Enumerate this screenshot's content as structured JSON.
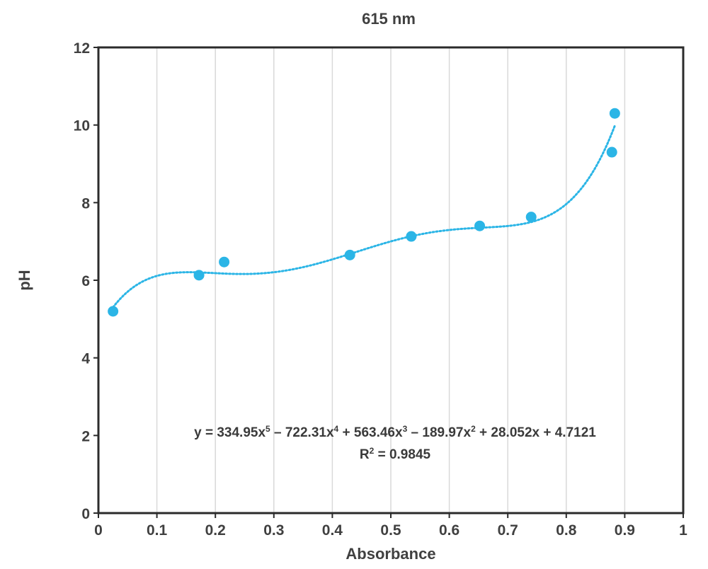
{
  "chart_data": {
    "type": "scatter",
    "title": "615 nm",
    "xlabel": "Absorbance",
    "ylabel": "pH",
    "xlim": [
      0,
      1
    ],
    "ylim": [
      0,
      12
    ],
    "x_ticks": [
      "0",
      "0.1",
      "0.2",
      "0.3",
      "0.4",
      "0.5",
      "0.6",
      "0.7",
      "0.8",
      "0.9",
      "1"
    ],
    "y_ticks": [
      "0",
      "2",
      "4",
      "6",
      "8",
      "10",
      "12"
    ],
    "grid": "vertical",
    "points": [
      {
        "x": 0.025,
        "y": 5.2
      },
      {
        "x": 0.172,
        "y": 6.13
      },
      {
        "x": 0.215,
        "y": 6.47
      },
      {
        "x": 0.43,
        "y": 6.65
      },
      {
        "x": 0.535,
        "y": 7.13
      },
      {
        "x": 0.652,
        "y": 7.4
      },
      {
        "x": 0.74,
        "y": 7.63
      },
      {
        "x": 0.878,
        "y": 9.3
      },
      {
        "x": 0.883,
        "y": 10.3
      }
    ],
    "trendline": {
      "type": "polynomial",
      "order": 5,
      "coefficients": [
        334.95,
        -722.31,
        563.46,
        -189.97,
        28.052,
        4.7121
      ],
      "x_range": [
        0.025,
        0.883
      ],
      "style": "dotted"
    },
    "equation": {
      "y_prefix": "y = 334.95x",
      "exp5": "5",
      "term4": " – 722.31x",
      "exp4": "4",
      "term3": " + 563.46x",
      "exp3": "3",
      "term2": " – 189.97x",
      "exp2": "2",
      "tail": " + 28.052x + 4.7121",
      "r2_prefix": "R",
      "r2_exp": "2",
      "r2_value": " = 0.9845"
    },
    "colors": {
      "series": "#2bb5e6",
      "axis": "#2b2b2b",
      "grid": "#d9d9d9",
      "text": "#404040"
    }
  }
}
